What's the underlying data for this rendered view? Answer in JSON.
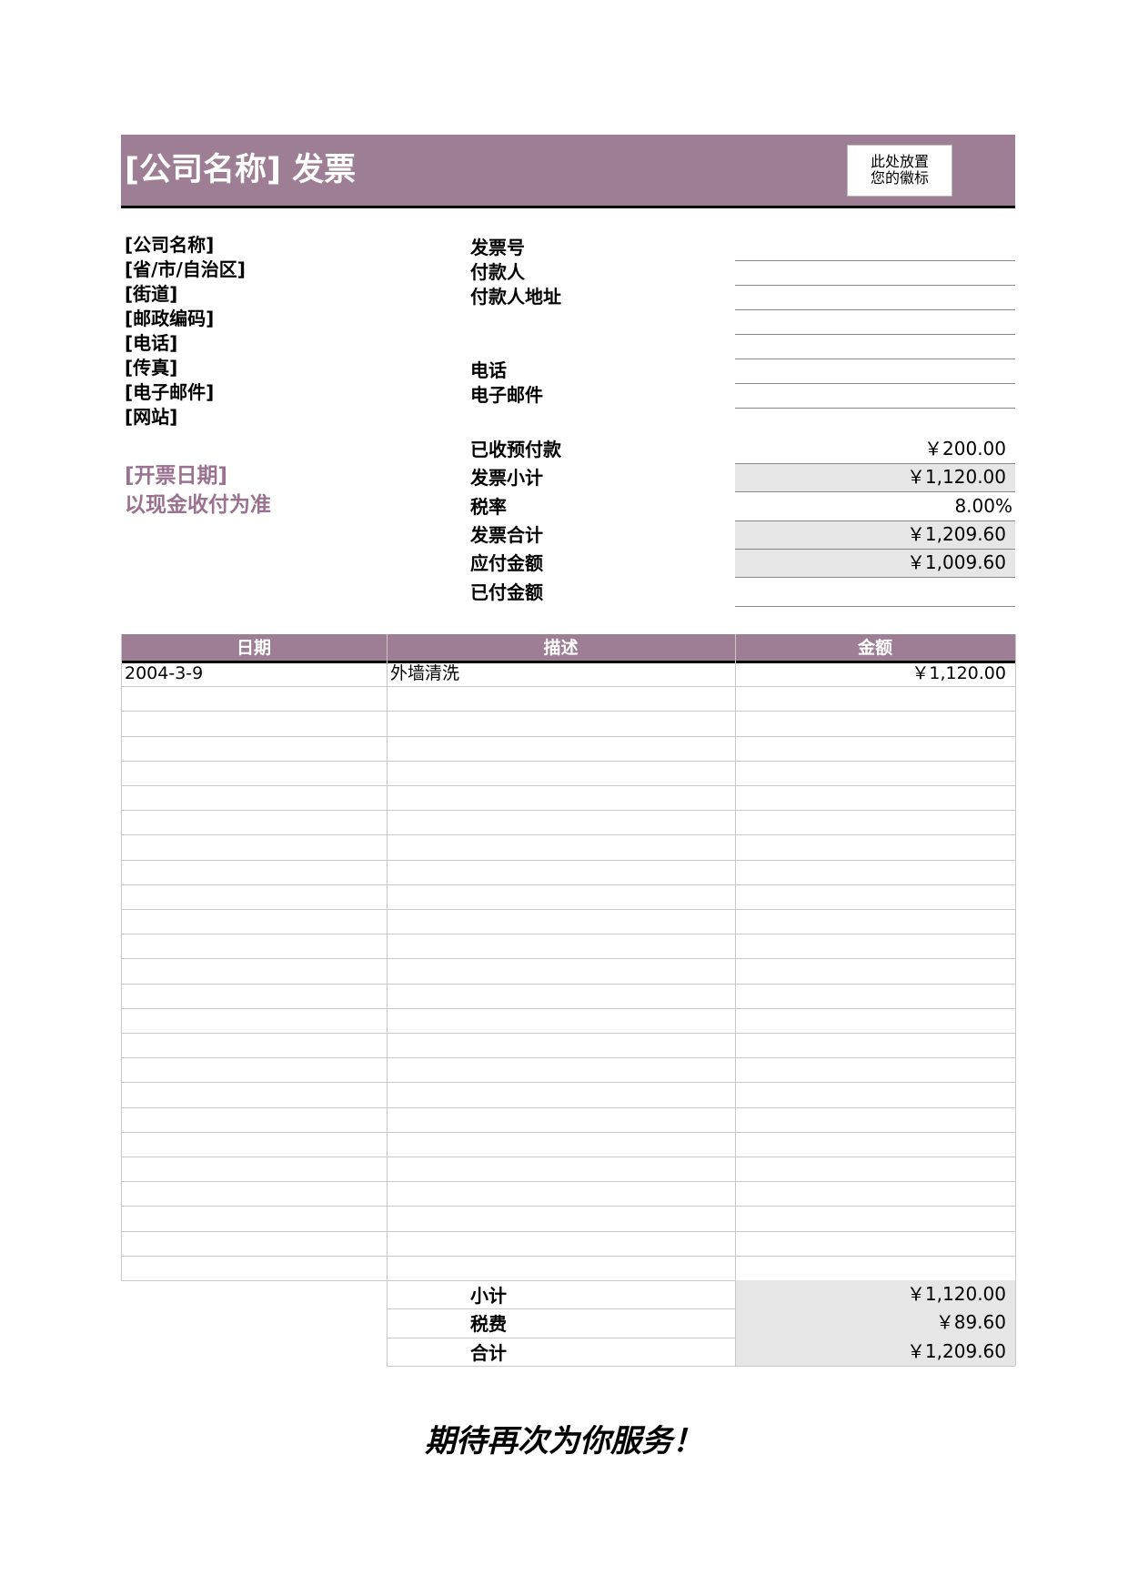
{
  "header": {
    "title": "[公司名称] 发票",
    "logo": [
      "此处放置",
      "您的徽标"
    ]
  },
  "company": [
    "[公司名称]",
    "[省/市/自治区]",
    "[街道]",
    "[邮政编码]",
    "[电话]",
    "[传真]",
    "[电子邮件]",
    "[网站]"
  ],
  "invoice_date": "[开票日期]",
  "payment_note": "以现金收付为准",
  "bill_labels": [
    "发票号",
    "付款人",
    "付款人地址",
    "电话",
    "电子邮件"
  ],
  "summary": [
    {
      "label": "已收预付款",
      "value": "￥200.00"
    },
    {
      "label": "发票小计",
      "value": "￥1,120.00"
    },
    {
      "label": "税率",
      "value": "8.00%"
    },
    {
      "label": "发票合计",
      "value": "￥1,209.60"
    },
    {
      "label": "应付金额",
      "value": "￥1,009.60"
    },
    {
      "label": "已付金额"
    }
  ],
  "table": {
    "columns": [
      "日期",
      "描述",
      "金额"
    ],
    "rows": [
      [
        "2004-3-9",
        "外墙清洗",
        "￥1,120.00"
      ]
    ]
  },
  "totals": [
    {
      "label": "小计",
      "value": "￥1,120.00"
    },
    {
      "label": "税费",
      "value": "￥89.60"
    },
    {
      "label": "合计",
      "value": "￥1,209.60"
    }
  ],
  "footer": "期待再次为你服务！"
}
